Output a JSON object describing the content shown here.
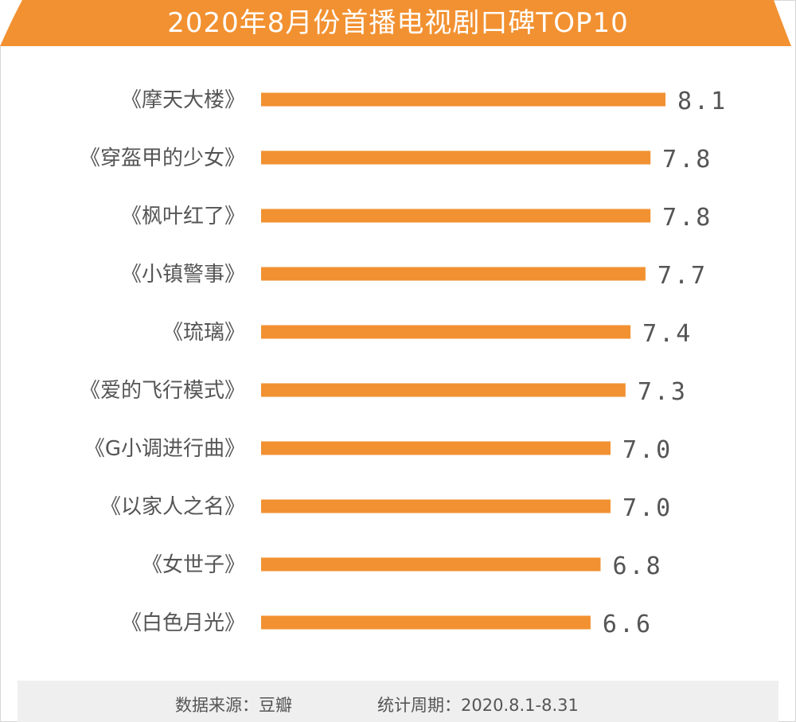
{
  "title": "2020年8月份首播电视剧口碑TOP10",
  "colors": {
    "accent": "#f29131",
    "text": "#555555",
    "footer_bg": "#efefef"
  },
  "chart_data": {
    "type": "bar",
    "orientation": "horizontal",
    "title": "2020年8月份首播电视剧口碑TOP10",
    "categories": [
      "《摩天大楼》",
      "《穿盔甲的少女》",
      "《枫叶红了》",
      "《小镇警事》",
      "《琉璃》",
      "《爱的飞行模式》",
      "《G小调进行曲》",
      "《以家人之名》",
      "《女世子》",
      "《白色月光》"
    ],
    "values": [
      8.1,
      7.8,
      7.8,
      7.7,
      7.4,
      7.3,
      7.0,
      7.0,
      6.8,
      6.6
    ],
    "value_labels": [
      "8.1",
      "7.8",
      "7.8",
      "7.7",
      "7.4",
      "7.3",
      "7.0",
      "7.0",
      "6.8",
      "6.6"
    ],
    "xlim": [
      0,
      8.1
    ],
    "grid": false,
    "data_labels": true
  },
  "footer": {
    "source": "数据来源：豆瓣",
    "period": "统计周期：2020.8.1-8.31"
  }
}
